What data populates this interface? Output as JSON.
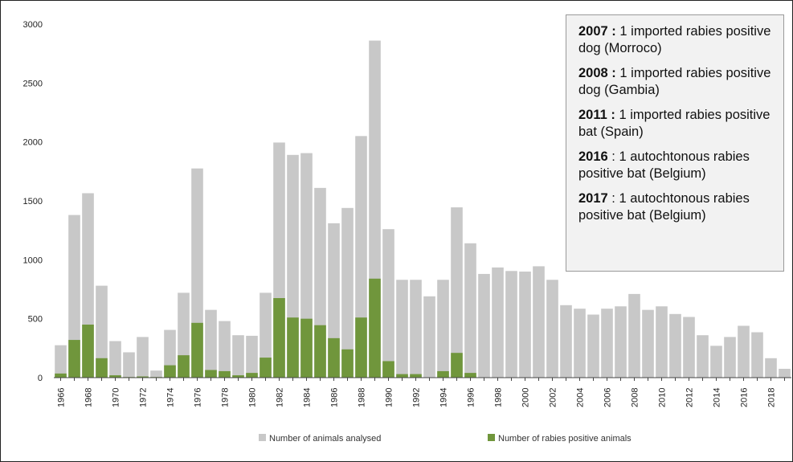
{
  "chart_data": {
    "type": "bar",
    "categories": [
      "1966",
      "1967",
      "1968",
      "1969",
      "1970",
      "1971",
      "1972",
      "1973",
      "1974",
      "1975",
      "1976",
      "1977",
      "1978",
      "1979",
      "1980",
      "1981",
      "1982",
      "1983",
      "1984",
      "1985",
      "1986",
      "1987",
      "1988",
      "1989",
      "1990",
      "1991",
      "1992",
      "1993",
      "1994",
      "1995",
      "1996",
      "1997",
      "1998",
      "1999",
      "2000",
      "2001",
      "2002",
      "2003",
      "2004",
      "2005",
      "2006",
      "2007",
      "2008",
      "2009",
      "2010",
      "2011",
      "2012",
      "2013",
      "2014",
      "2015",
      "2016",
      "2017",
      "2018",
      "2019"
    ],
    "series": [
      {
        "name": "Number of animals analysed",
        "color": "#c8c8c8",
        "values": [
          275,
          1380,
          1565,
          780,
          310,
          215,
          345,
          60,
          405,
          720,
          1775,
          575,
          480,
          360,
          355,
          720,
          1995,
          1890,
          1905,
          1610,
          1310,
          1440,
          2050,
          2860,
          1260,
          830,
          830,
          690,
          830,
          1445,
          1140,
          880,
          935,
          905,
          900,
          945,
          830,
          615,
          585,
          535,
          585,
          605,
          710,
          575,
          605,
          540,
          515,
          360,
          270,
          345,
          440,
          385,
          165,
          75
        ]
      },
      {
        "name": "Number of rabies positive animals",
        "color": "#70963c",
        "values": [
          35,
          320,
          450,
          165,
          20,
          5,
          10,
          5,
          105,
          190,
          465,
          65,
          55,
          20,
          40,
          170,
          675,
          510,
          500,
          445,
          335,
          240,
          510,
          840,
          140,
          30,
          30,
          0,
          55,
          210,
          40,
          0,
          0,
          0,
          0,
          0,
          0,
          0,
          0,
          0,
          0,
          0,
          0,
          0,
          0,
          0,
          0,
          0,
          0,
          0,
          0,
          0,
          0,
          0
        ]
      }
    ],
    "x_tick_labels": [
      "1966",
      "1968",
      "1970",
      "1972",
      "1974",
      "1976",
      "1978",
      "1980",
      "1982",
      "1984",
      "1986",
      "1988",
      "1990",
      "1992",
      "1994",
      "1996",
      "1998",
      "2000",
      "2002",
      "2004",
      "2006",
      "2008",
      "2010",
      "2012",
      "2014",
      "2016",
      "2018"
    ],
    "y_ticks": [
      "0",
      "500",
      "1000",
      "1500",
      "2000",
      "2500",
      "3000"
    ],
    "ylim": [
      0,
      3000
    ],
    "grid": false,
    "legend_position": "bottom"
  },
  "notes": [
    {
      "year": "2007",
      "sep": " : ",
      "sep_bold": true,
      "text": "1 imported rabies positive dog (Morroco)"
    },
    {
      "year": "2008",
      "sep": " : ",
      "sep_bold": true,
      "text": "1 imported rabies positive dog (Gambia)"
    },
    {
      "year": "2011",
      "sep": " : ",
      "sep_bold": true,
      "text": "1 imported rabies positive bat (Spain)"
    },
    {
      "year": "2016",
      "sep": " : ",
      "sep_bold": false,
      "text": "1 autochtonous rabies positive bat (Belgium)"
    },
    {
      "year": "2017",
      "sep": " : ",
      "sep_bold": false,
      "text": "1 autochtonous rabies positive bat (Belgium)"
    }
  ]
}
